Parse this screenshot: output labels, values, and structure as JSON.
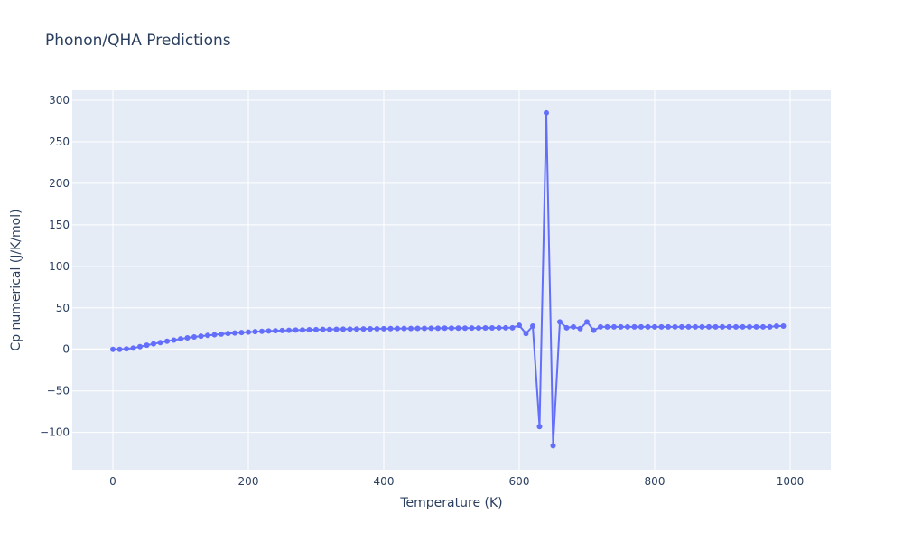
{
  "chart_data": {
    "type": "line",
    "title": "Phonon/QHA Predictions",
    "xlabel": "Temperature (K)",
    "ylabel": "Cp numerical (J/K/mol)",
    "xlim": [
      -60,
      1060
    ],
    "ylim": [
      -145,
      312
    ],
    "xticks": [
      0,
      200,
      400,
      600,
      800,
      1000
    ],
    "xtick_labels": [
      "0",
      "200",
      "400",
      "600",
      "800",
      "1000"
    ],
    "yticks": [
      -100,
      -50,
      0,
      50,
      100,
      150,
      200,
      250,
      300
    ],
    "ytick_labels": [
      "−100",
      "−50",
      "0",
      "50",
      "100",
      "150",
      "200",
      "250",
      "300"
    ],
    "grid": true,
    "colors": {
      "series": "#636efa",
      "plot_bg": "#e5ecf6",
      "text": "#2a3f5f"
    },
    "series": [
      {
        "x": [
          0,
          10,
          20,
          30,
          40,
          50,
          60,
          70,
          80,
          90,
          100,
          110,
          120,
          130,
          140,
          150,
          160,
          170,
          180,
          190,
          200,
          210,
          220,
          230,
          240,
          250,
          260,
          270,
          280,
          290,
          300,
          310,
          320,
          330,
          340,
          350,
          360,
          370,
          380,
          390,
          400,
          410,
          420,
          430,
          440,
          450,
          460,
          470,
          480,
          490,
          500,
          510,
          520,
          530,
          540,
          550,
          560,
          570,
          580,
          590,
          600,
          610,
          620,
          630,
          640,
          650,
          660,
          670,
          680,
          690,
          700,
          710,
          720,
          730,
          740,
          750,
          760,
          770,
          780,
          790,
          800,
          810,
          820,
          830,
          840,
          850,
          860,
          870,
          880,
          890,
          900,
          910,
          920,
          930,
          940,
          950,
          960,
          970,
          980,
          990
        ],
        "y": [
          0,
          0,
          0.5,
          1.5,
          3.2,
          5,
          6.6,
          8.2,
          9.8,
          11.2,
          12.6,
          13.9,
          15,
          15.9,
          16.8,
          17.6,
          18.4,
          19.1,
          19.7,
          20.3,
          20.8,
          21.3,
          21.7,
          22.1,
          22.4,
          22.7,
          23,
          23.2,
          23.4,
          23.6,
          23.8,
          24,
          24.1,
          24.2,
          24.3,
          24.4,
          24.5,
          24.6,
          24.7,
          24.8,
          24.9,
          25,
          25.1,
          25.2,
          25.2,
          25.3,
          25.3,
          25.4,
          25.4,
          25.5,
          25.5,
          25.6,
          25.6,
          25.7,
          25.7,
          25.8,
          25.8,
          25.9,
          25.9,
          26,
          29,
          19,
          28,
          -93,
          285,
          -116,
          33,
          26,
          27,
          25,
          33,
          23,
          27,
          27,
          27,
          27,
          27,
          27,
          27,
          27,
          27,
          27,
          27,
          27,
          27,
          27,
          27,
          27,
          27,
          27,
          27,
          27,
          27,
          27,
          27,
          27,
          27,
          27,
          28,
          28
        ]
      }
    ]
  }
}
